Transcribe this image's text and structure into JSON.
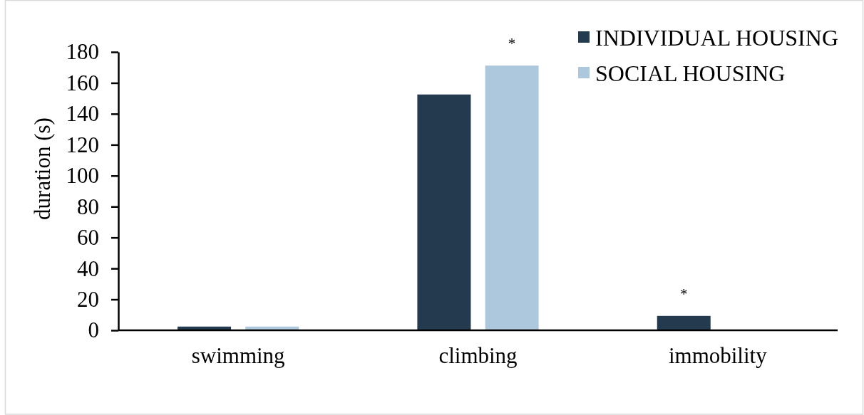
{
  "chart_data": {
    "type": "bar",
    "ylabel": "duration (s)",
    "categories": [
      "swimming",
      "climbing",
      "immobility"
    ],
    "series": [
      {
        "name": "INDIVIDUAL HOUSING",
        "color": "#233a4f",
        "values": [
          2.4,
          152.5,
          9.3
        ],
        "value_labels": [
          null,
          null,
          "*"
        ]
      },
      {
        "name": "SOCIAL HOUSING",
        "color": "#adc7dc",
        "values": [
          2.4,
          171.2,
          0.3
        ],
        "value_labels": [
          null,
          "*",
          null
        ]
      }
    ],
    "ylim": [
      0,
      180
    ],
    "yticks": [
      0,
      20,
      40,
      60,
      80,
      100,
      120,
      140,
      160,
      180
    ],
    "legend": "top right"
  }
}
